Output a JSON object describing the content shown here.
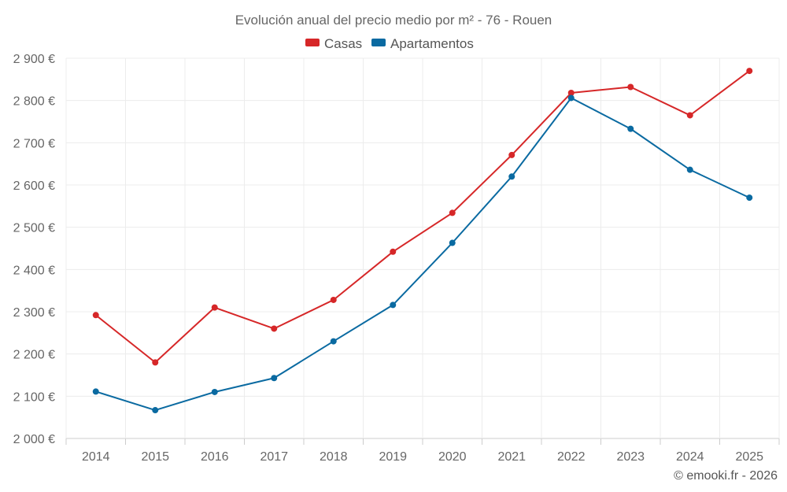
{
  "chart_data": {
    "type": "line",
    "title": "Evolución anual del precio medio por m² - 76 - Rouen",
    "categories": [
      "2014",
      "2015",
      "2016",
      "2017",
      "2018",
      "2019",
      "2020",
      "2021",
      "2022",
      "2023",
      "2024",
      "2025"
    ],
    "series": [
      {
        "name": "Casas",
        "color": "#d62728",
        "values": [
          2292,
          2180,
          2310,
          2260,
          2328,
          2442,
          2534,
          2671,
          2818,
          2832,
          2765,
          2870
        ]
      },
      {
        "name": "Apartamentos",
        "color": "#0a6aa1",
        "values": [
          2111,
          2067,
          2110,
          2143,
          2230,
          2316,
          2463,
          2620,
          2806,
          2733,
          2636,
          2570
        ]
      }
    ],
    "ylim": [
      2000,
      2900
    ],
    "yticks": [
      2000,
      2100,
      2200,
      2300,
      2400,
      2500,
      2600,
      2700,
      2800,
      2900
    ],
    "ytick_labels": [
      "2 000 €",
      "2 100 €",
      "2 200 €",
      "2 300 €",
      "2 400 €",
      "2 500 €",
      "2 600 €",
      "2 700 €",
      "2 800 €",
      "2 900 €"
    ],
    "xlabel": "",
    "ylabel": "",
    "grid": true,
    "legend_position": "top-center"
  },
  "credit": "© emooki.fr - 2026"
}
